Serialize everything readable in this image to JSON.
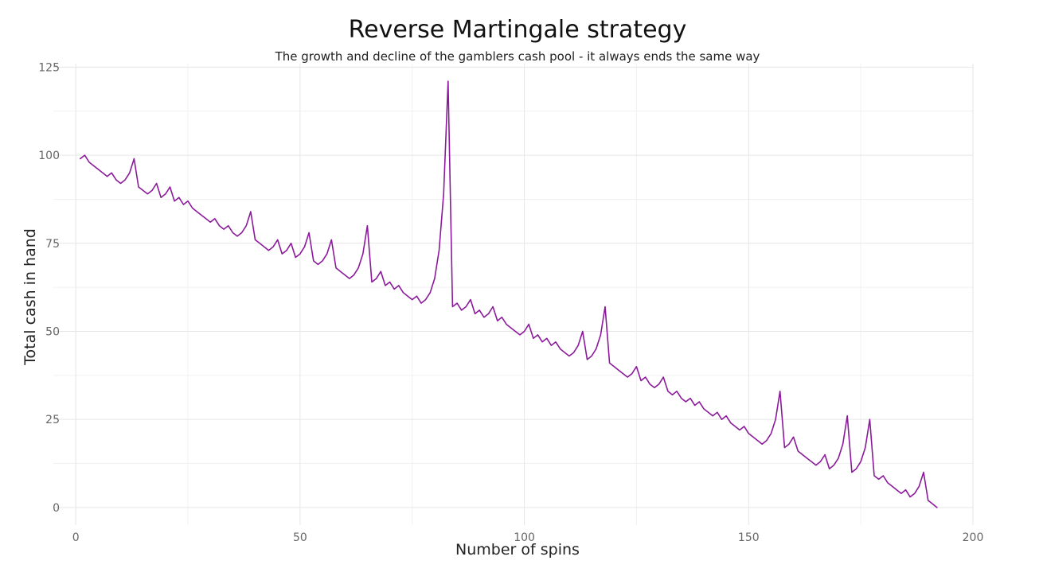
{
  "chart_data": {
    "type": "line",
    "title": "Reverse Martingale strategy",
    "subtitle": "The growth and decline of the gamblers cash pool - it always ends the same way",
    "xlabel": "Number of spins",
    "ylabel": "Total cash in hand",
    "xlim": [
      -5,
      200
    ],
    "ylim": [
      -5,
      126
    ],
    "x_ticks": [
      0,
      50,
      100,
      150,
      200
    ],
    "y_ticks": [
      0,
      25,
      50,
      75,
      100,
      125
    ],
    "x_tick_labels": [
      "0",
      "50",
      "100",
      "150",
      "200"
    ],
    "y_tick_labels": [
      "0",
      "25",
      "50",
      "75",
      "100",
      "125"
    ],
    "grid": true,
    "line_color": "#8B1A9B",
    "series": [
      {
        "name": "",
        "x": [
          1,
          2,
          3,
          4,
          5,
          6,
          7,
          8,
          9,
          10,
          11,
          12,
          13,
          14,
          15,
          16,
          17,
          18,
          19,
          20,
          21,
          22,
          23,
          24,
          25,
          26,
          27,
          28,
          29,
          30,
          31,
          32,
          33,
          34,
          35,
          36,
          37,
          38,
          39,
          40,
          41,
          42,
          43,
          44,
          45,
          46,
          47,
          48,
          49,
          50,
          51,
          52,
          53,
          54,
          55,
          56,
          57,
          58,
          59,
          60,
          61,
          62,
          63,
          64,
          65,
          66,
          67,
          68,
          69,
          70,
          71,
          72,
          73,
          74,
          75,
          76,
          77,
          78,
          79,
          80,
          81,
          82,
          83,
          84,
          85,
          86,
          87,
          88,
          89,
          90,
          91,
          92,
          93,
          94,
          95,
          96,
          97,
          98,
          99,
          100,
          101,
          102,
          103,
          104,
          105,
          106,
          107,
          108,
          109,
          110,
          111,
          112,
          113,
          114,
          115,
          116,
          117,
          118,
          119,
          120,
          121,
          122,
          123,
          124,
          125,
          126,
          127,
          128,
          129,
          130,
          131,
          132,
          133,
          134,
          135,
          136,
          137,
          138,
          139,
          140,
          141,
          142,
          143,
          144,
          145,
          146,
          147,
          148,
          149,
          150,
          151,
          152,
          153,
          154,
          155,
          156,
          157,
          158,
          159,
          160,
          161,
          162,
          163,
          164,
          165,
          166,
          167,
          168,
          169,
          170,
          171,
          172,
          173,
          174,
          175,
          176,
          177,
          178,
          179,
          180,
          181,
          182,
          183,
          184,
          185,
          186,
          187,
          188,
          189,
          190,
          191,
          192
        ],
        "y": [
          99,
          100,
          98,
          97,
          96,
          95,
          94,
          95,
          93,
          92,
          93,
          95,
          99,
          91,
          90,
          89,
          90,
          92,
          88,
          89,
          91,
          87,
          88,
          86,
          87,
          85,
          84,
          83,
          82,
          81,
          82,
          80,
          79,
          80,
          78,
          77,
          78,
          80,
          84,
          76,
          75,
          74,
          73,
          74,
          76,
          72,
          73,
          75,
          71,
          72,
          74,
          78,
          70,
          69,
          70,
          72,
          76,
          68,
          67,
          66,
          65,
          66,
          68,
          72,
          80,
          64,
          65,
          67,
          63,
          64,
          62,
          63,
          61,
          60,
          59,
          60,
          58,
          59,
          61,
          65,
          73,
          89,
          121,
          57,
          58,
          56,
          57,
          59,
          55,
          56,
          54,
          55,
          57,
          53,
          54,
          52,
          51,
          50,
          49,
          50,
          52,
          48,
          49,
          47,
          48,
          46,
          47,
          45,
          44,
          43,
          44,
          46,
          50,
          42,
          43,
          45,
          49,
          57,
          41,
          40,
          39,
          38,
          37,
          38,
          40,
          36,
          37,
          35,
          34,
          35,
          37,
          33,
          32,
          33,
          31,
          30,
          31,
          29,
          30,
          28,
          27,
          26,
          27,
          25,
          26,
          24,
          23,
          22,
          23,
          21,
          20,
          19,
          18,
          19,
          21,
          25,
          33,
          17,
          18,
          20,
          16,
          15,
          14,
          13,
          12,
          13,
          15,
          11,
          12,
          14,
          18,
          26,
          10,
          11,
          13,
          17,
          25,
          9,
          8,
          9,
          7,
          6,
          5,
          4,
          5,
          3,
          4,
          6,
          10,
          2,
          1,
          0
        ]
      }
    ]
  }
}
